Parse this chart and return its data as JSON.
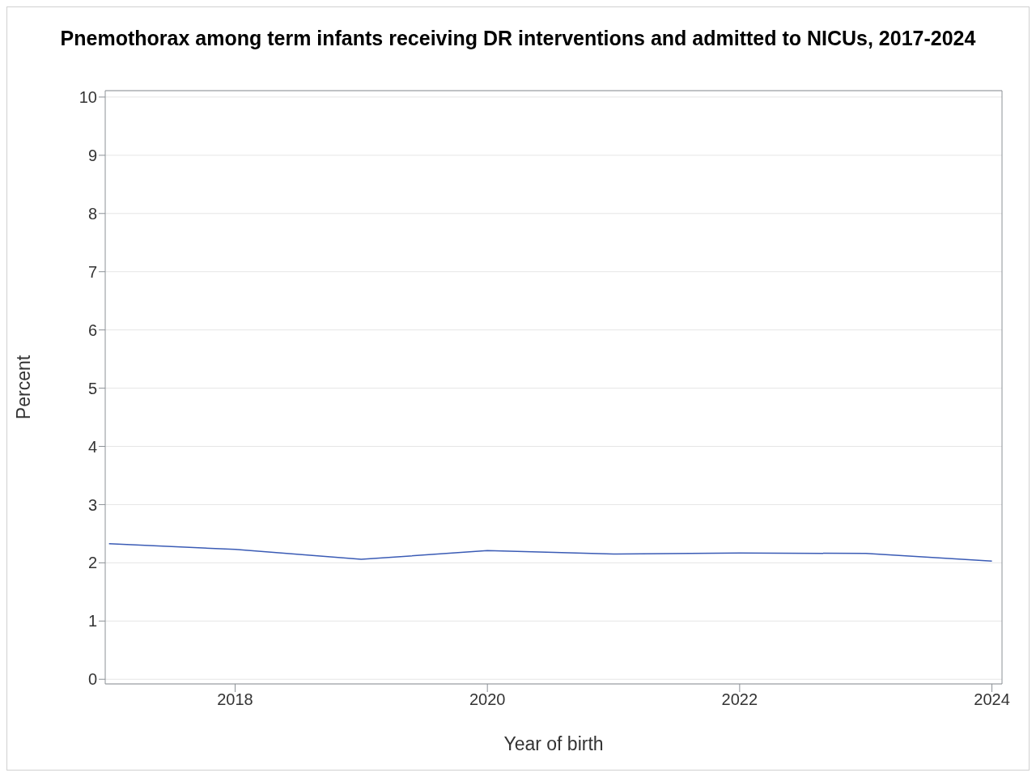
{
  "chart_data": {
    "type": "line",
    "title": "Pnemothorax among term infants receiving DR interventions and admitted to NICUs, 2017-2024",
    "xlabel": "Year of birth",
    "ylabel": "Percent",
    "x": [
      2017,
      2018,
      2019,
      2020,
      2021,
      2022,
      2023,
      2024
    ],
    "series": [
      {
        "color": "#3a5bb5",
        "values": [
          2.33,
          2.23,
          2.06,
          2.21,
          2.15,
          2.17,
          2.16,
          2.03
        ]
      }
    ],
    "xlim": [
      2016.97,
      2024.08
    ],
    "xticks": [
      2018,
      2020,
      2022,
      2024
    ],
    "ylim": [
      -0.08,
      10.11
    ],
    "yticks": [
      0,
      1,
      2,
      3,
      4,
      5,
      6,
      7,
      8,
      9,
      10
    ],
    "grid": "y",
    "legend": false,
    "marker": "none",
    "line_style": "solid"
  }
}
